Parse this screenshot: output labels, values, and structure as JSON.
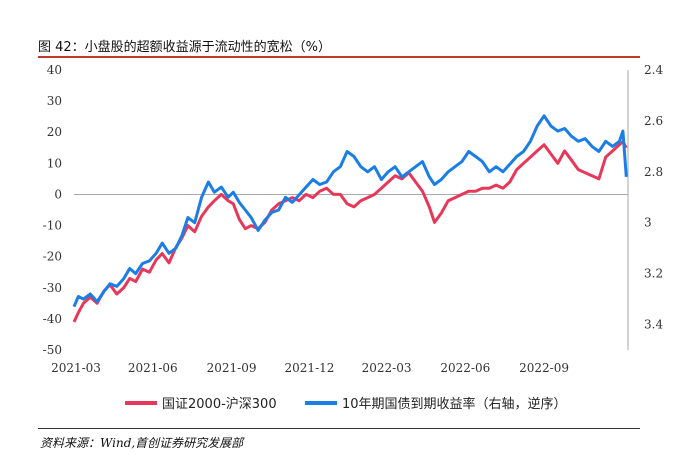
{
  "title": "图 42：小盘股的超额收益源于流动性的宽松（%）",
  "source": "资料来源：Wind,首创证券研究发展部",
  "colors": {
    "series1": "#e8385a",
    "series2": "#1a7ee6"
  },
  "chart_data": {
    "type": "line",
    "x_ticks": [
      "2021-03",
      "2021-06",
      "2021-09",
      "2021-12",
      "2022-03",
      "2022-06",
      "2022-09"
    ],
    "y_left": {
      "range": [
        -50,
        40
      ],
      "ticks": [
        "40",
        "30",
        "20",
        "10",
        "0",
        "-10",
        "-20",
        "-30",
        "-40",
        "-50"
      ]
    },
    "y_right": {
      "range": [
        2.4,
        3.5
      ],
      "inverted": true,
      "ticks": [
        "2.4",
        "2.6",
        "2.8",
        "3",
        "3.2",
        "3.4"
      ]
    },
    "series": [
      {
        "name": "国证2000-沪深300",
        "axis": "left",
        "points": [
          [
            "2021-03-01",
            -41
          ],
          [
            "2021-03-06",
            -38
          ],
          [
            "2021-03-12",
            -35
          ],
          [
            "2021-03-20",
            -33
          ],
          [
            "2021-03-28",
            -35
          ],
          [
            "2021-04-05",
            -31
          ],
          [
            "2021-04-12",
            -29
          ],
          [
            "2021-04-20",
            -32
          ],
          [
            "2021-04-28",
            -30
          ],
          [
            "2021-05-05",
            -27
          ],
          [
            "2021-05-12",
            -28
          ],
          [
            "2021-05-20",
            -24
          ],
          [
            "2021-05-28",
            -25
          ],
          [
            "2021-06-05",
            -21
          ],
          [
            "2021-06-12",
            -19
          ],
          [
            "2021-06-20",
            -22
          ],
          [
            "2021-06-28",
            -17
          ],
          [
            "2021-07-05",
            -14
          ],
          [
            "2021-07-12",
            -10
          ],
          [
            "2021-07-20",
            -12
          ],
          [
            "2021-07-28",
            -7
          ],
          [
            "2021-08-05",
            -4
          ],
          [
            "2021-08-12",
            -2
          ],
          [
            "2021-08-20",
            0
          ],
          [
            "2021-08-28",
            -2
          ],
          [
            "2021-09-03",
            -3
          ],
          [
            "2021-09-10",
            -8
          ],
          [
            "2021-09-17",
            -11
          ],
          [
            "2021-09-24",
            -10
          ],
          [
            "2021-10-02",
            -11
          ],
          [
            "2021-10-10",
            -9
          ],
          [
            "2021-10-18",
            -5
          ],
          [
            "2021-10-26",
            -3
          ],
          [
            "2021-11-03",
            -2
          ],
          [
            "2021-11-11",
            -1
          ],
          [
            "2021-11-19",
            -2
          ],
          [
            "2021-11-27",
            0
          ],
          [
            "2021-12-05",
            -1
          ],
          [
            "2021-12-13",
            1
          ],
          [
            "2021-12-21",
            2
          ],
          [
            "2021-12-29",
            0
          ],
          [
            "2022-01-06",
            0
          ],
          [
            "2022-01-14",
            -3
          ],
          [
            "2022-01-22",
            -4
          ],
          [
            "2022-01-30",
            -2
          ],
          [
            "2022-02-07",
            -1
          ],
          [
            "2022-02-15",
            0
          ],
          [
            "2022-02-23",
            2
          ],
          [
            "2022-03-03",
            4
          ],
          [
            "2022-03-11",
            6
          ],
          [
            "2022-03-19",
            5
          ],
          [
            "2022-03-27",
            7
          ],
          [
            "2022-04-04",
            4
          ],
          [
            "2022-04-12",
            1
          ],
          [
            "2022-04-20",
            -4
          ],
          [
            "2022-04-26",
            -9
          ],
          [
            "2022-05-04",
            -6
          ],
          [
            "2022-05-12",
            -2
          ],
          [
            "2022-05-20",
            -1
          ],
          [
            "2022-05-28",
            0
          ],
          [
            "2022-06-05",
            1
          ],
          [
            "2022-06-13",
            1
          ],
          [
            "2022-06-21",
            2
          ],
          [
            "2022-06-29",
            2
          ],
          [
            "2022-07-07",
            3
          ],
          [
            "2022-07-15",
            2
          ],
          [
            "2022-07-23",
            4
          ],
          [
            "2022-07-31",
            8
          ],
          [
            "2022-08-08",
            10
          ],
          [
            "2022-08-16",
            12
          ],
          [
            "2022-08-24",
            14
          ],
          [
            "2022-09-01",
            16
          ],
          [
            "2022-09-09",
            13
          ],
          [
            "2022-09-17",
            10
          ],
          [
            "2022-09-25",
            14
          ],
          [
            "2022-10-03",
            11
          ],
          [
            "2022-10-11",
            8
          ],
          [
            "2022-10-19",
            7
          ],
          [
            "2022-10-27",
            6
          ],
          [
            "2022-11-04",
            5
          ],
          [
            "2022-11-12",
            12
          ],
          [
            "2022-11-20",
            14
          ],
          [
            "2022-11-28",
            16
          ],
          [
            "2022-12-02",
            17
          ],
          [
            "2022-12-06",
            15
          ]
        ]
      },
      {
        "name": "10年期国债到期收益率（右轴，逆序）",
        "axis": "right",
        "points": [
          [
            "2021-03-01",
            3.33
          ],
          [
            "2021-03-06",
            3.29
          ],
          [
            "2021-03-12",
            3.3
          ],
          [
            "2021-03-20",
            3.28
          ],
          [
            "2021-03-28",
            3.31
          ],
          [
            "2021-04-05",
            3.27
          ],
          [
            "2021-04-12",
            3.24
          ],
          [
            "2021-04-20",
            3.25
          ],
          [
            "2021-04-28",
            3.22
          ],
          [
            "2021-05-05",
            3.18
          ],
          [
            "2021-05-12",
            3.2
          ],
          [
            "2021-05-20",
            3.16
          ],
          [
            "2021-05-28",
            3.15
          ],
          [
            "2021-06-05",
            3.12
          ],
          [
            "2021-06-12",
            3.08
          ],
          [
            "2021-06-20",
            3.12
          ],
          [
            "2021-06-28",
            3.1
          ],
          [
            "2021-07-05",
            3.05
          ],
          [
            "2021-07-12",
            2.98
          ],
          [
            "2021-07-20",
            3.0
          ],
          [
            "2021-07-28",
            2.9
          ],
          [
            "2021-08-05",
            2.84
          ],
          [
            "2021-08-12",
            2.88
          ],
          [
            "2021-08-20",
            2.86
          ],
          [
            "2021-08-28",
            2.9
          ],
          [
            "2021-09-03",
            2.88
          ],
          [
            "2021-09-10",
            2.92
          ],
          [
            "2021-09-17",
            2.95
          ],
          [
            "2021-09-24",
            2.98
          ],
          [
            "2021-10-02",
            3.03
          ],
          [
            "2021-10-10",
            2.99
          ],
          [
            "2021-10-18",
            2.96
          ],
          [
            "2021-10-26",
            2.95
          ],
          [
            "2021-11-03",
            2.9
          ],
          [
            "2021-11-11",
            2.92
          ],
          [
            "2021-11-19",
            2.89
          ],
          [
            "2021-11-27",
            2.86
          ],
          [
            "2021-12-05",
            2.83
          ],
          [
            "2021-12-13",
            2.85
          ],
          [
            "2021-12-21",
            2.84
          ],
          [
            "2021-12-29",
            2.8
          ],
          [
            "2022-01-06",
            2.78
          ],
          [
            "2022-01-14",
            2.72
          ],
          [
            "2022-01-22",
            2.74
          ],
          [
            "2022-01-30",
            2.78
          ],
          [
            "2022-02-07",
            2.8
          ],
          [
            "2022-02-15",
            2.78
          ],
          [
            "2022-02-23",
            2.83
          ],
          [
            "2022-03-03",
            2.8
          ],
          [
            "2022-03-11",
            2.78
          ],
          [
            "2022-03-19",
            2.82
          ],
          [
            "2022-03-27",
            2.8
          ],
          [
            "2022-04-04",
            2.78
          ],
          [
            "2022-04-12",
            2.76
          ],
          [
            "2022-04-20",
            2.82
          ],
          [
            "2022-04-26",
            2.85
          ],
          [
            "2022-05-04",
            2.83
          ],
          [
            "2022-05-12",
            2.8
          ],
          [
            "2022-05-20",
            2.78
          ],
          [
            "2022-05-28",
            2.76
          ],
          [
            "2022-06-05",
            2.72
          ],
          [
            "2022-06-13",
            2.74
          ],
          [
            "2022-06-21",
            2.76
          ],
          [
            "2022-06-29",
            2.8
          ],
          [
            "2022-07-07",
            2.78
          ],
          [
            "2022-07-15",
            2.8
          ],
          [
            "2022-07-23",
            2.77
          ],
          [
            "2022-07-31",
            2.74
          ],
          [
            "2022-08-08",
            2.72
          ],
          [
            "2022-08-16",
            2.68
          ],
          [
            "2022-08-24",
            2.62
          ],
          [
            "2022-09-01",
            2.58
          ],
          [
            "2022-09-09",
            2.62
          ],
          [
            "2022-09-17",
            2.64
          ],
          [
            "2022-09-25",
            2.63
          ],
          [
            "2022-10-03",
            2.66
          ],
          [
            "2022-10-11",
            2.68
          ],
          [
            "2022-10-19",
            2.67
          ],
          [
            "2022-10-27",
            2.7
          ],
          [
            "2022-11-04",
            2.72
          ],
          [
            "2022-11-12",
            2.68
          ],
          [
            "2022-11-20",
            2.7
          ],
          [
            "2022-11-28",
            2.68
          ],
          [
            "2022-12-02",
            2.64
          ],
          [
            "2022-12-06",
            2.82
          ]
        ]
      }
    ]
  }
}
